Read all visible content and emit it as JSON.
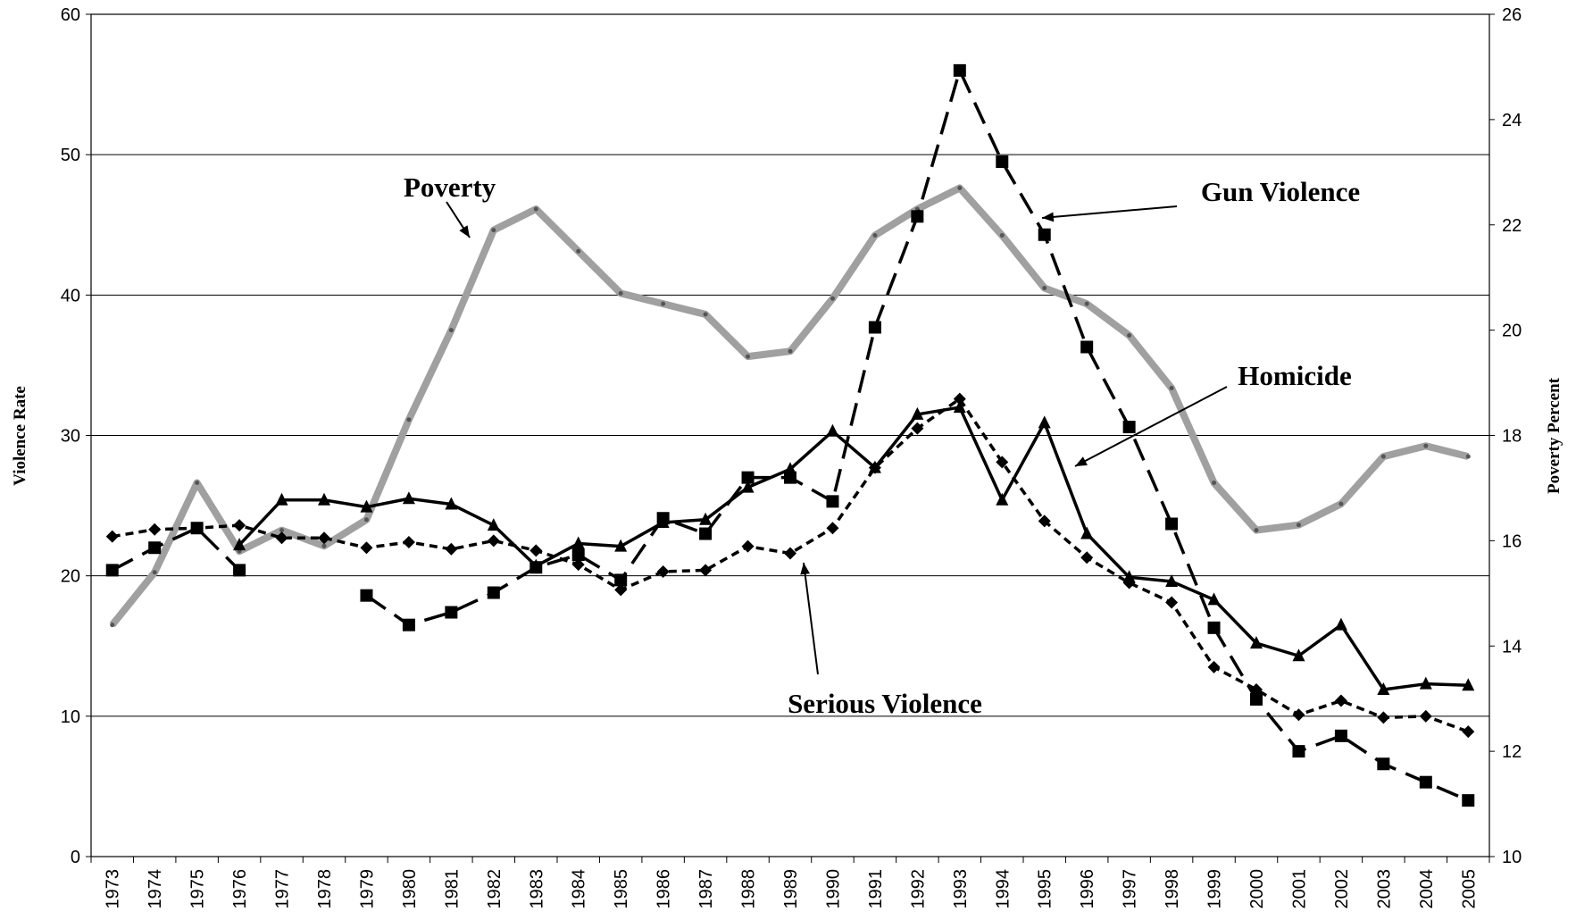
{
  "chart_data": {
    "type": "line",
    "y_label": "Violence Rate",
    "y2_label": "Poverty Percent",
    "categories": [
      "1973",
      "1974",
      "1975",
      "1976",
      "1977",
      "1978",
      "1979",
      "1980",
      "1981",
      "1982",
      "1983",
      "1984",
      "1985",
      "1986",
      "1987",
      "1988",
      "1989",
      "1990",
      "1991",
      "1992",
      "1993",
      "1994",
      "1995",
      "1996",
      "1997",
      "1998",
      "1999",
      "2000",
      "2001",
      "2002",
      "2003",
      "2004",
      "2005"
    ],
    "ylim": [
      0,
      60
    ],
    "yticks": [
      0,
      10,
      20,
      30,
      40,
      50,
      60
    ],
    "y2lim": [
      10,
      26
    ],
    "y2ticks": [
      10,
      12,
      14,
      16,
      18,
      20,
      22,
      24,
      26
    ],
    "grid": true,
    "series": [
      {
        "name": "Poverty",
        "axis": "y2",
        "color": "#a0a0a0",
        "marker": "dot",
        "dash": "solid",
        "values": [
          14.4,
          15.4,
          17.1,
          15.8,
          16.2,
          15.9,
          16.4,
          18.3,
          20.0,
          21.9,
          22.3,
          21.5,
          20.7,
          20.5,
          20.3,
          19.5,
          19.6,
          20.6,
          21.8,
          22.3,
          22.7,
          21.8,
          20.8,
          20.5,
          19.9,
          18.9,
          17.1,
          16.2,
          16.3,
          16.7,
          17.6,
          17.8,
          17.6
        ]
      },
      {
        "name": "Gun Violence",
        "color": "#000000",
        "marker": "square",
        "dash": "long",
        "values": [
          20.4,
          22.0,
          23.4,
          20.4,
          null,
          null,
          18.6,
          16.5,
          17.4,
          18.8,
          20.6,
          21.5,
          19.7,
          24.1,
          23.0,
          27.0,
          27.0,
          25.3,
          37.7,
          45.6,
          56.0,
          49.5,
          44.3,
          36.3,
          30.6,
          23.7,
          16.3,
          11.2,
          7.5,
          8.6,
          6.6,
          5.3,
          4.0
        ]
      },
      {
        "name": "Homicide",
        "color": "#000000",
        "marker": "triangle",
        "dash": "solid",
        "values": [
          null,
          null,
          null,
          22.2,
          25.4,
          25.4,
          24.9,
          25.5,
          25.1,
          23.6,
          20.7,
          22.3,
          22.1,
          23.8,
          24.0,
          26.3,
          27.6,
          30.3,
          27.7,
          31.5,
          32.0,
          25.4,
          30.9,
          23.0,
          19.9,
          19.6,
          18.3,
          15.2,
          14.3,
          16.5,
          11.9,
          12.3,
          12.2
        ]
      },
      {
        "name": "Serious Violence",
        "color": "#000000",
        "marker": "diamond",
        "dash": "short",
        "values": [
          22.8,
          23.3,
          23.4,
          23.6,
          22.7,
          22.7,
          22.0,
          22.4,
          21.9,
          22.5,
          21.8,
          20.8,
          19.0,
          20.3,
          20.4,
          22.1,
          21.6,
          23.4,
          27.7,
          30.5,
          32.6,
          28.1,
          23.9,
          21.3,
          19.5,
          18.1,
          13.5,
          11.9,
          10.1,
          11.1,
          9.9,
          10.0,
          8.9
        ]
      }
    ]
  }
}
